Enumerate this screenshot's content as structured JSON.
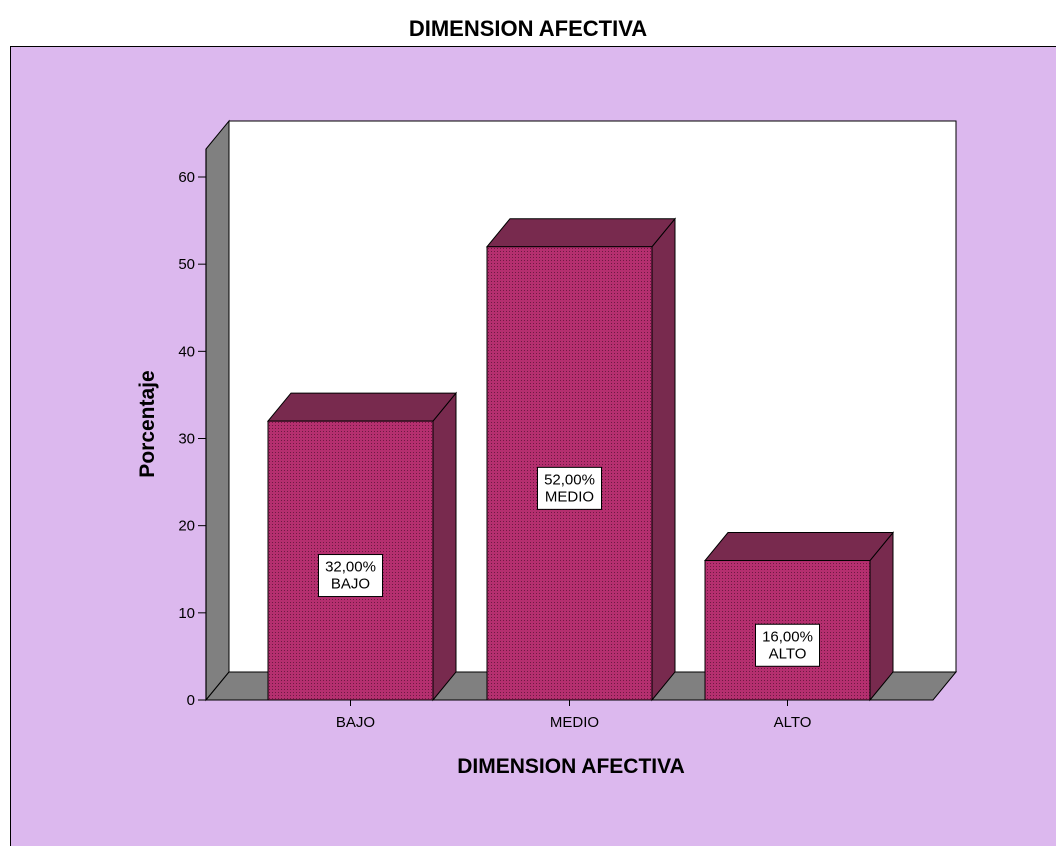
{
  "chart_data": {
    "type": "bar",
    "title": "DIMENSION AFECTIVA",
    "xlabel": "DIMENSION AFECTIVA",
    "ylabel": "Porcentaje",
    "categories": [
      "BAJO",
      "MEDIO",
      "ALTO"
    ],
    "values": [
      32,
      52,
      16
    ],
    "data_labels": [
      "32,00%\nBAJO",
      "52,00%\nMEDIO",
      "16,00%\nALTO"
    ],
    "ylim": [
      0,
      60
    ],
    "yticks": [
      "0",
      "10",
      "20",
      "30",
      "40",
      "50",
      "60"
    ],
    "style": "3d",
    "grid": false,
    "legend": "none",
    "colors": {
      "background": "#dcb8ee",
      "plot_area": "#ffffff",
      "bar_front": "#b52f6f",
      "bar_side": "#782a4e",
      "bar_top": "#782a4e",
      "floor": "#808080",
      "wall": "#808080"
    }
  }
}
